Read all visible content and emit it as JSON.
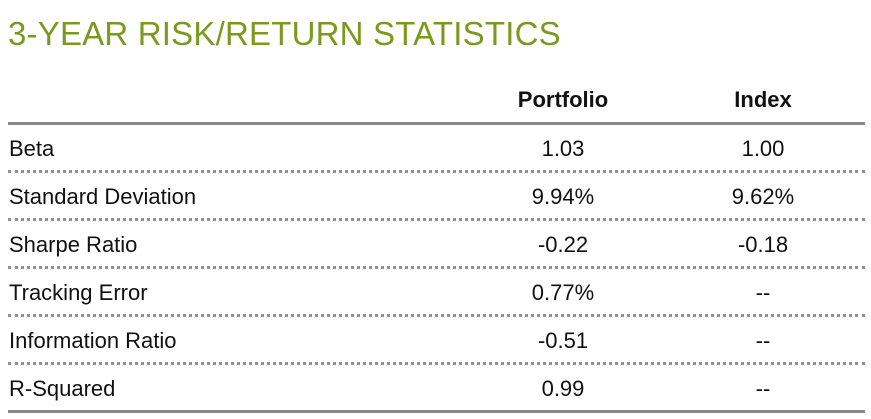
{
  "title": "3-YEAR RISK/RETURN STATISTICS",
  "headers": {
    "portfolio": "Portfolio",
    "index": "Index"
  },
  "rows": [
    {
      "label": "Beta",
      "portfolio": "1.03",
      "index": "1.00"
    },
    {
      "label": "Standard Deviation",
      "portfolio": "9.94%",
      "index": "9.62%"
    },
    {
      "label": "Sharpe Ratio",
      "portfolio": "-0.22",
      "index": "-0.18"
    },
    {
      "label": "Tracking Error",
      "portfolio": "0.77%",
      "index": "--"
    },
    {
      "label": "Information Ratio",
      "portfolio": "-0.51",
      "index": "--"
    },
    {
      "label": "R-Squared",
      "portfolio": "0.99",
      "index": "--"
    }
  ],
  "colors": {
    "title": "#7a9a1e",
    "text": "#111111",
    "rule": "#8a8a8a"
  }
}
